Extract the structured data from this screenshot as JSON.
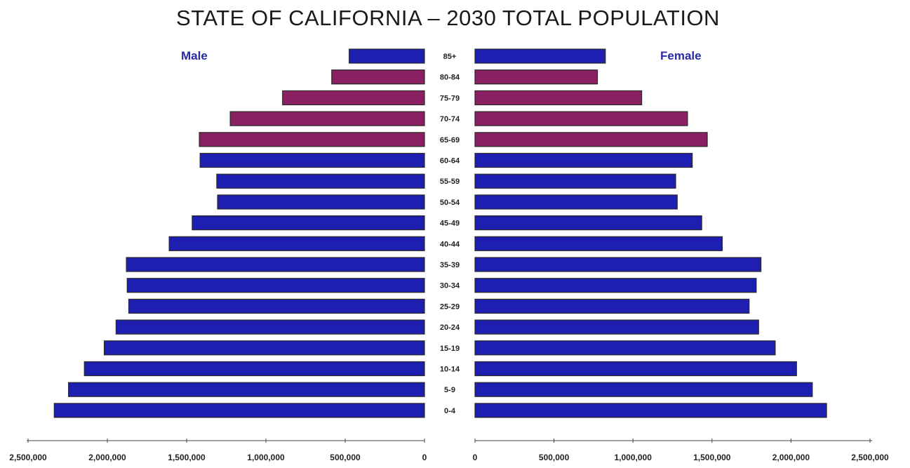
{
  "chart_data": {
    "type": "bar",
    "title": "STATE OF CALIFORNIA – 2030 TOTAL POPULATION",
    "side_labels": {
      "left": "Male",
      "right": "Female"
    },
    "categories": [
      "85+",
      "80-84",
      "75-79",
      "70-74",
      "65-69",
      "60-64",
      "55-59",
      "50-54",
      "45-49",
      "40-44",
      "35-39",
      "30-34",
      "25-29",
      "20-24",
      "15-19",
      "10-14",
      "5-9",
      "0-4"
    ],
    "series": [
      {
        "name": "Male",
        "values": [
          475000,
          585000,
          895000,
          1225000,
          1420000,
          1415000,
          1310000,
          1305000,
          1465000,
          1610000,
          1880000,
          1875000,
          1865000,
          1945000,
          2020000,
          2145000,
          2245000,
          2335000
        ]
      },
      {
        "name": "Female",
        "values": [
          825000,
          775000,
          1055000,
          1345000,
          1470000,
          1375000,
          1270000,
          1280000,
          1435000,
          1565000,
          1810000,
          1780000,
          1735000,
          1795000,
          1900000,
          2035000,
          2135000,
          2225000
        ]
      }
    ],
    "highlight_categories": [
      "80-84",
      "75-79",
      "70-74",
      "65-69"
    ],
    "colors": {
      "base": "#1e1eb0",
      "highlight": "#8a1f62",
      "outline": "#2a2a2a"
    },
    "xlim": [
      0,
      2500000
    ],
    "left_ticks": [
      "2,500,000",
      "2,000,000",
      "1,500,000",
      "1,000,000",
      "500,000",
      "0"
    ],
    "right_ticks": [
      "0",
      "500,000",
      "1,000,000",
      "1,500,000",
      "2,000,000",
      "2,500,000"
    ],
    "tick_values": [
      0,
      500000,
      1000000,
      1500000,
      2000000,
      2500000
    ],
    "grid": false,
    "legend": "none"
  }
}
